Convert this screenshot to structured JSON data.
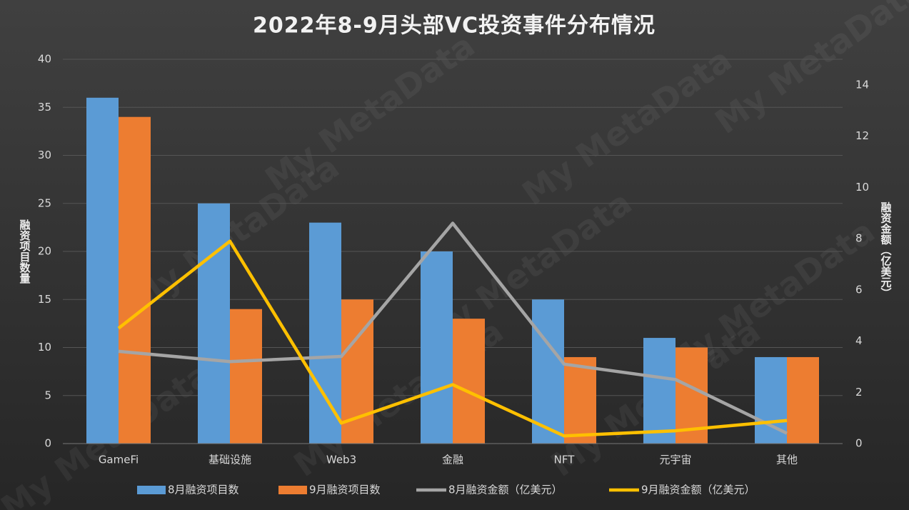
{
  "chart_data": {
    "type": "bar_line",
    "title": "2022年8-9月头部VC投资事件分布情况",
    "watermark": "My MetaData",
    "categories": [
      "GameFi",
      "基础设施",
      "Web3",
      "金融",
      "NFT",
      "元宇宙",
      "其他"
    ],
    "ylabel": "融资项目数量",
    "y2label": "融资金额（亿美元）",
    "ylim": [
      0,
      40
    ],
    "yticks": [
      0,
      5,
      10,
      15,
      20,
      25,
      30,
      35,
      40
    ],
    "y2lim": [
      0,
      15
    ],
    "y2ticks": [
      0,
      2,
      4,
      6,
      8,
      10,
      12,
      14
    ],
    "grid": true,
    "series": [
      {
        "name": "8月融资项目数",
        "type": "bar",
        "color": "#5b9bd5",
        "values": [
          36,
          25,
          23,
          20,
          15,
          11,
          9
        ]
      },
      {
        "name": "9月融资项目数",
        "type": "bar",
        "color": "#ed7d31",
        "values": [
          34,
          14,
          15,
          13,
          9,
          10,
          9
        ]
      },
      {
        "name": "8月融资金额（亿美元）",
        "type": "line",
        "axis": "y2",
        "color": "#a5a5a5",
        "values": [
          3.6,
          3.2,
          3.4,
          8.6,
          3.1,
          2.5,
          0.4
        ]
      },
      {
        "name": "9月融资金额（亿美元）",
        "type": "line",
        "axis": "y2",
        "color": "#ffc000",
        "values": [
          4.5,
          7.9,
          0.8,
          2.3,
          0.3,
          0.5,
          0.9
        ]
      }
    ]
  }
}
